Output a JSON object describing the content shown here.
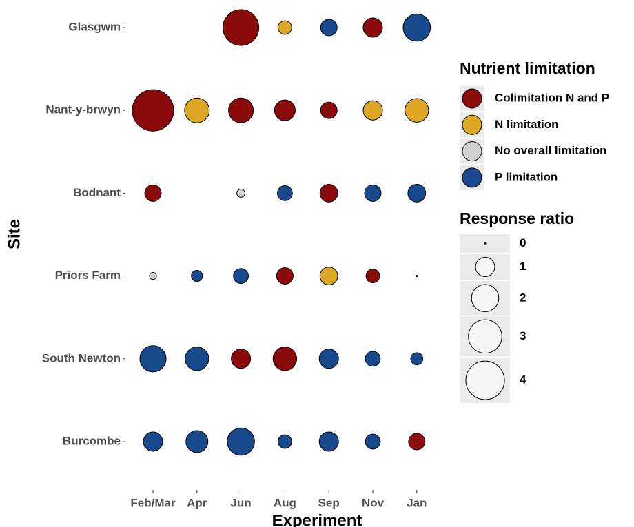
{
  "chart_data": {
    "type": "bubble",
    "x_label": "Experiment",
    "y_label": "Site",
    "categories": [
      "Feb/Mar",
      "Apr",
      "Jun",
      "Aug",
      "Sep",
      "Nov",
      "Jan"
    ],
    "color_legend": {
      "title": "Nutrient limitation",
      "items": [
        {
          "name": "Colimitation N and P",
          "color": "#8b0a0a"
        },
        {
          "name": "N limitation",
          "color": "#dea826"
        },
        {
          "name": "No overall limitation",
          "color": "#d0d0d0"
        },
        {
          "name": "P limitation",
          "color": "#18498c"
        }
      ]
    },
    "size_legend": {
      "title": "Response ratio",
      "values": [
        0,
        1,
        2,
        3,
        4
      ]
    },
    "series": [
      {
        "name": "Glasgwm",
        "values": [
          null,
          null,
          3.45,
          0.5,
          0.73,
          1.0,
          2.0
        ],
        "limitation": [
          null,
          null,
          0,
          1,
          3,
          0,
          3
        ]
      },
      {
        "name": "Nant-y-brwyn",
        "values": [
          4.6,
          1.65,
          1.65,
          1.15,
          0.73,
          1.0,
          1.5
        ],
        "limitation": [
          0,
          1,
          0,
          0,
          0,
          1,
          1
        ]
      },
      {
        "name": "Bodnant",
        "values": [
          0.73,
          null,
          0.18,
          0.6,
          0.85,
          0.73,
          0.85
        ],
        "limitation": [
          0,
          null,
          2,
          3,
          0,
          3,
          3
        ]
      },
      {
        "name": "Priors Farm",
        "values": [
          0.13,
          0.33,
          0.6,
          0.73,
          0.85,
          0.5,
          0.0
        ],
        "limitation": [
          2,
          3,
          3,
          0,
          1,
          0,
          3
        ]
      },
      {
        "name": "South Newton",
        "values": [
          1.85,
          1.5,
          1.0,
          1.5,
          1.0,
          0.6,
          0.4
        ],
        "limitation": [
          3,
          3,
          0,
          0,
          3,
          3,
          3
        ]
      },
      {
        "name": "Burcombe",
        "values": [
          1.0,
          1.3,
          2.0,
          0.5,
          1.0,
          0.6,
          0.73
        ],
        "limitation": [
          3,
          3,
          3,
          3,
          3,
          3,
          0
        ]
      }
    ]
  }
}
